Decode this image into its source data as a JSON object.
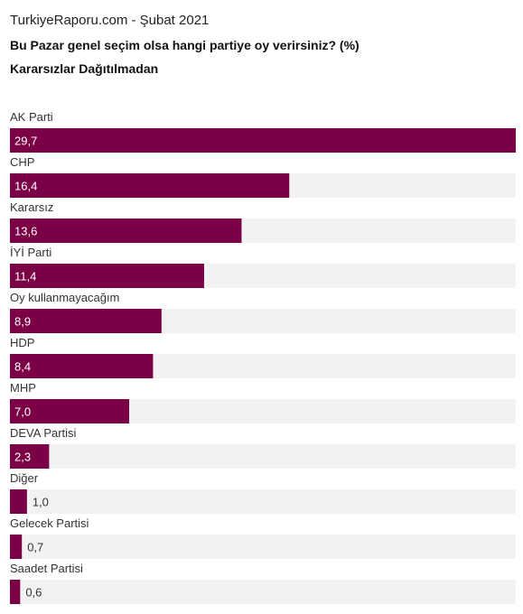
{
  "header": {
    "source": "TurkiyeRaporu.com - Şubat 2021",
    "title": "Bu Pazar genel seçim olsa hangi partiye oy verirsiniz? (%)",
    "subtitle": "Kararsızlar Dağıtılmadan"
  },
  "colors": {
    "bar": "#7b0046",
    "track": "#f2f2f2"
  },
  "chart_data": {
    "type": "bar",
    "orientation": "horizontal",
    "title": "Bu Pazar genel seçim olsa hangi partiye oy verirsiniz? (%)",
    "subtitle": "Kararsızlar Dağıtılmadan",
    "categories": [
      "AK Parti",
      "CHP",
      "Kararsız",
      "İYİ Parti",
      "Oy kullanmayacağım",
      "HDP",
      "MHP",
      "DEVA Partisi",
      "Diğer",
      "Gelecek Partisi",
      "Saadet Partisi"
    ],
    "values": [
      29.7,
      16.4,
      13.6,
      11.4,
      8.9,
      8.4,
      7.0,
      2.3,
      1.0,
      0.7,
      0.6
    ],
    "value_labels": [
      "29,7",
      "16,4",
      "13,6",
      "11,4",
      "8,9",
      "8,4",
      "7,0",
      "2,3",
      "1,0",
      "0,7",
      "0,6"
    ],
    "xlim": [
      0,
      29.7
    ],
    "grid": false,
    "legend": "none"
  }
}
